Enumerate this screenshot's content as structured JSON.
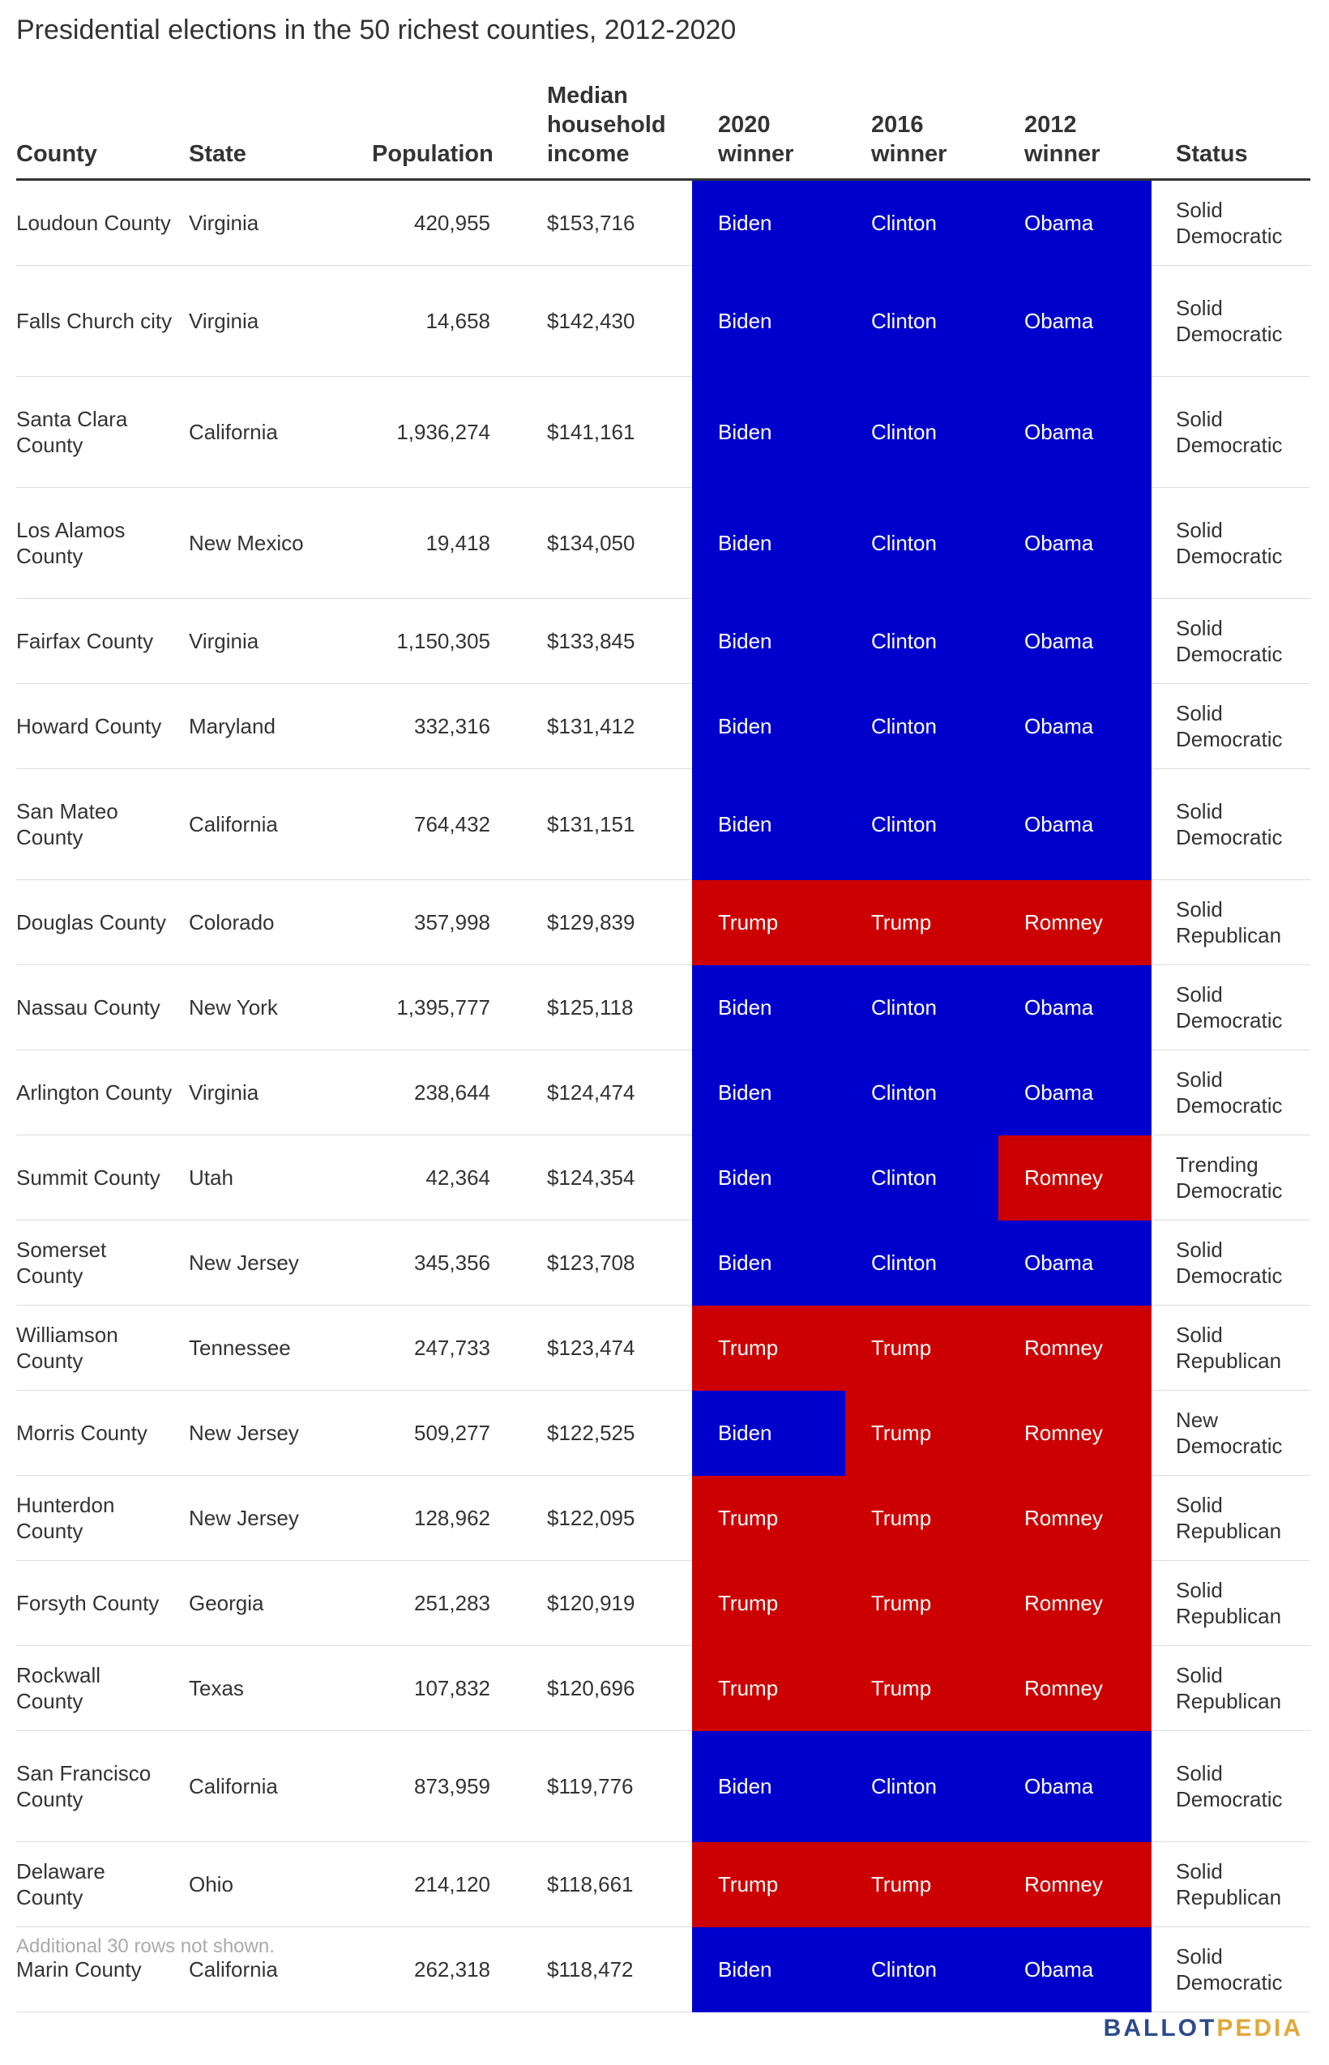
{
  "title": "Presidential elections in the 50 richest counties, 2012-2020",
  "columns": {
    "county": "County",
    "state": "State",
    "population": "Population",
    "income": "Median household income",
    "winner_2020": "2020 winner",
    "winner_2016": "2016 winner",
    "winner_2012": "2012 winner",
    "status": "Status"
  },
  "rows": [
    {
      "county": "Loudoun County",
      "state": "Virginia",
      "population": "420,955",
      "income": "$153,716",
      "w2020": "Biden",
      "w2016": "Clinton",
      "w2012": "Obama",
      "status": "Solid Democratic"
    },
    {
      "county": "Falls Church city",
      "state": "Virginia",
      "population": "14,658",
      "income": "$142,430",
      "w2020": "Biden",
      "w2016": "Clinton",
      "w2012": "Obama",
      "status": "Solid Democratic"
    },
    {
      "county": "Santa Clara County",
      "state": "California",
      "population": "1,936,274",
      "income": "$141,161",
      "w2020": "Biden",
      "w2016": "Clinton",
      "w2012": "Obama",
      "status": "Solid Democratic"
    },
    {
      "county": "Los Alamos County",
      "state": "New Mexico",
      "population": "19,418",
      "income": "$134,050",
      "w2020": "Biden",
      "w2016": "Clinton",
      "w2012": "Obama",
      "status": "Solid Democratic"
    },
    {
      "county": "Fairfax County",
      "state": "Virginia",
      "population": "1,150,305",
      "income": "$133,845",
      "w2020": "Biden",
      "w2016": "Clinton",
      "w2012": "Obama",
      "status": "Solid Democratic"
    },
    {
      "county": "Howard County",
      "state": "Maryland",
      "population": "332,316",
      "income": "$131,412",
      "w2020": "Biden",
      "w2016": "Clinton",
      "w2012": "Obama",
      "status": "Solid Democratic"
    },
    {
      "county": "San Mateo County",
      "state": "California",
      "population": "764,432",
      "income": "$131,151",
      "w2020": "Biden",
      "w2016": "Clinton",
      "w2012": "Obama",
      "status": "Solid Democratic"
    },
    {
      "county": "Douglas County",
      "state": "Colorado",
      "population": "357,998",
      "income": "$129,839",
      "w2020": "Trump",
      "w2016": "Trump",
      "w2012": "Romney",
      "status": "Solid Republican"
    },
    {
      "county": "Nassau County",
      "state": "New York",
      "population": "1,395,777",
      "income": "$125,118",
      "w2020": "Biden",
      "w2016": "Clinton",
      "w2012": "Obama",
      "status": "Solid Democratic"
    },
    {
      "county": "Arlington County",
      "state": "Virginia",
      "population": "238,644",
      "income": "$124,474",
      "w2020": "Biden",
      "w2016": "Clinton",
      "w2012": "Obama",
      "status": "Solid Democratic"
    },
    {
      "county": "Summit County",
      "state": "Utah",
      "population": "42,364",
      "income": "$124,354",
      "w2020": "Biden",
      "w2016": "Clinton",
      "w2012": "Romney",
      "status": "Trending Democratic"
    },
    {
      "county": "Somerset County",
      "state": "New Jersey",
      "population": "345,356",
      "income": "$123,708",
      "w2020": "Biden",
      "w2016": "Clinton",
      "w2012": "Obama",
      "status": "Solid Democratic"
    },
    {
      "county": "Williamson County",
      "state": "Tennessee",
      "population": "247,733",
      "income": "$123,474",
      "w2020": "Trump",
      "w2016": "Trump",
      "w2012": "Romney",
      "status": "Solid Republican"
    },
    {
      "county": "Morris County",
      "state": "New Jersey",
      "population": "509,277",
      "income": "$122,525",
      "w2020": "Biden",
      "w2016": "Trump",
      "w2012": "Romney",
      "status": "New Democratic"
    },
    {
      "county": "Hunterdon County",
      "state": "New Jersey",
      "population": "128,962",
      "income": "$122,095",
      "w2020": "Trump",
      "w2016": "Trump",
      "w2012": "Romney",
      "status": "Solid Republican"
    },
    {
      "county": "Forsyth County",
      "state": "Georgia",
      "population": "251,283",
      "income": "$120,919",
      "w2020": "Trump",
      "w2016": "Trump",
      "w2012": "Romney",
      "status": "Solid Republican"
    },
    {
      "county": "Rockwall County",
      "state": "Texas",
      "population": "107,832",
      "income": "$120,696",
      "w2020": "Trump",
      "w2016": "Trump",
      "w2012": "Romney",
      "status": "Solid Republican"
    },
    {
      "county": "San Francisco County",
      "state": "California",
      "population": "873,959",
      "income": "$119,776",
      "w2020": "Biden",
      "w2016": "Clinton",
      "w2012": "Obama",
      "status": "Solid Democratic"
    },
    {
      "county": "Delaware County",
      "state": "Ohio",
      "population": "214,120",
      "income": "$118,661",
      "w2020": "Trump",
      "w2016": "Trump",
      "w2012": "Romney",
      "status": "Solid Republican"
    },
    {
      "county": "Marin County",
      "state": "California",
      "population": "262,318",
      "income": "$118,472",
      "w2020": "Biden",
      "w2016": "Clinton",
      "w2012": "Obama",
      "status": "Solid Democratic"
    }
  ],
  "footnote": "Additional 30 rows not shown.",
  "logo": {
    "part1": "BALLOT",
    "part2": "PEDIA"
  },
  "colors": {
    "democratic": "#0000cc",
    "republican": "#cc0000",
    "logo_blue": "#2c4a8c",
    "logo_gold": "#e0a83a"
  }
}
